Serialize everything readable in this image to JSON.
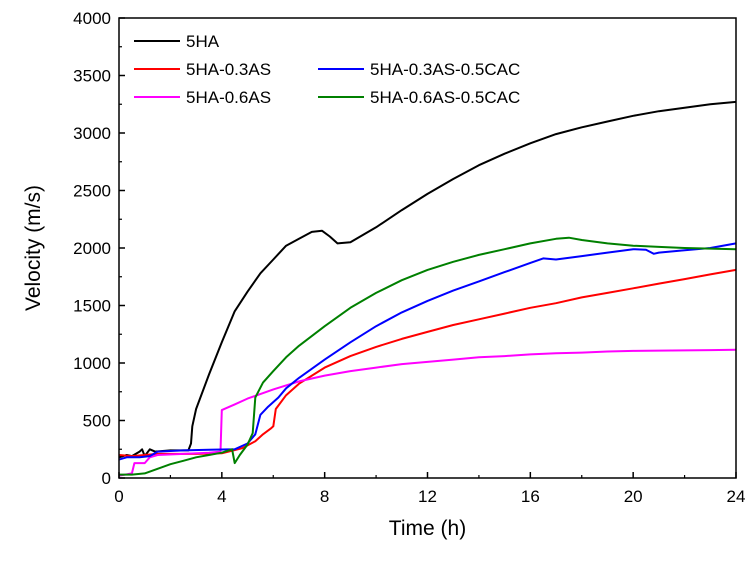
{
  "chart_data": {
    "type": "line",
    "title": "",
    "xlabel": "Time (h)",
    "ylabel": "Velocity (m/s)",
    "xlim": [
      0,
      24
    ],
    "ylim": [
      0,
      4000
    ],
    "xticks": [
      0,
      4,
      8,
      12,
      16,
      20,
      24
    ],
    "yticks": [
      0,
      500,
      1000,
      1500,
      2000,
      2500,
      3000,
      3500,
      4000
    ],
    "grid": false,
    "legend_position": "top-left",
    "series": [
      {
        "name": "5HA",
        "color": "#000000",
        "points": [
          [
            0,
            180
          ],
          [
            0.3,
            200
          ],
          [
            0.5,
            190
          ],
          [
            0.8,
            230
          ],
          [
            0.9,
            250
          ],
          [
            1.0,
            190
          ],
          [
            1.2,
            250
          ],
          [
            1.4,
            230
          ],
          [
            2.0,
            240
          ],
          [
            2.7,
            240
          ],
          [
            2.8,
            300
          ],
          [
            2.85,
            450
          ],
          [
            3.0,
            600
          ],
          [
            3.5,
            900
          ],
          [
            4.0,
            1180
          ],
          [
            4.5,
            1450
          ],
          [
            5.0,
            1620
          ],
          [
            5.5,
            1780
          ],
          [
            6.0,
            1900
          ],
          [
            6.5,
            2020
          ],
          [
            7.0,
            2080
          ],
          [
            7.5,
            2140
          ],
          [
            7.9,
            2150
          ],
          [
            8.2,
            2100
          ],
          [
            8.5,
            2040
          ],
          [
            9.0,
            2050
          ],
          [
            10,
            2180
          ],
          [
            11,
            2330
          ],
          [
            12,
            2470
          ],
          [
            13,
            2600
          ],
          [
            14,
            2720
          ],
          [
            15,
            2820
          ],
          [
            16,
            2910
          ],
          [
            17,
            2990
          ],
          [
            18,
            3050
          ],
          [
            19,
            3100
          ],
          [
            20,
            3150
          ],
          [
            21,
            3190
          ],
          [
            22,
            3220
          ],
          [
            23,
            3250
          ],
          [
            24,
            3270
          ]
        ]
      },
      {
        "name": "5HA-0.3AS",
        "color": "#ff0000",
        "points": [
          [
            0,
            200
          ],
          [
            0.5,
            190
          ],
          [
            1.0,
            200
          ],
          [
            1.5,
            210
          ],
          [
            3.0,
            210
          ],
          [
            4.0,
            215
          ],
          [
            4.8,
            260
          ],
          [
            5.3,
            320
          ],
          [
            5.6,
            380
          ],
          [
            5.9,
            430
          ],
          [
            6.0,
            450
          ],
          [
            6.1,
            600
          ],
          [
            6.5,
            720
          ],
          [
            7.0,
            820
          ],
          [
            8.0,
            960
          ],
          [
            9.0,
            1060
          ],
          [
            10,
            1140
          ],
          [
            11,
            1210
          ],
          [
            12,
            1270
          ],
          [
            13,
            1330
          ],
          [
            14,
            1380
          ],
          [
            15,
            1430
          ],
          [
            16,
            1480
          ],
          [
            17,
            1520
          ],
          [
            18,
            1570
          ],
          [
            19,
            1610
          ],
          [
            20,
            1650
          ],
          [
            21,
            1690
          ],
          [
            22,
            1730
          ],
          [
            23,
            1770
          ],
          [
            24,
            1810
          ]
        ]
      },
      {
        "name": "5HA-0.6AS",
        "color": "#ff00ff",
        "points": [
          [
            0,
            20
          ],
          [
            0.5,
            40
          ],
          [
            0.6,
            130
          ],
          [
            1.0,
            130
          ],
          [
            1.2,
            180
          ],
          [
            1.5,
            200
          ],
          [
            2.5,
            210
          ],
          [
            3.5,
            220
          ],
          [
            3.95,
            230
          ],
          [
            4.0,
            590
          ],
          [
            4.5,
            640
          ],
          [
            5.0,
            690
          ],
          [
            6.0,
            770
          ],
          [
            7.0,
            840
          ],
          [
            8.0,
            890
          ],
          [
            9.0,
            930
          ],
          [
            10,
            960
          ],
          [
            11,
            990
          ],
          [
            12,
            1010
          ],
          [
            13,
            1030
          ],
          [
            14,
            1050
          ],
          [
            15,
            1060
          ],
          [
            16,
            1075
          ],
          [
            17,
            1085
          ],
          [
            18,
            1090
          ],
          [
            19,
            1100
          ],
          [
            20,
            1105
          ],
          [
            21,
            1108
          ],
          [
            22,
            1110
          ],
          [
            23,
            1112
          ],
          [
            24,
            1115
          ]
        ]
      },
      {
        "name": "5HA-0.3AS-0.5CAC",
        "color": "#0000ff",
        "points": [
          [
            0,
            160
          ],
          [
            0.3,
            180
          ],
          [
            0.8,
            180
          ],
          [
            1.2,
            190
          ],
          [
            1.5,
            230
          ],
          [
            2.5,
            240
          ],
          [
            3.5,
            245
          ],
          [
            4.5,
            250
          ],
          [
            5.0,
            300
          ],
          [
            5.3,
            380
          ],
          [
            5.5,
            550
          ],
          [
            5.8,
            620
          ],
          [
            6.2,
            700
          ],
          [
            6.5,
            780
          ],
          [
            7.0,
            870
          ],
          [
            8.0,
            1030
          ],
          [
            9.0,
            1180
          ],
          [
            10,
            1320
          ],
          [
            11,
            1440
          ],
          [
            12,
            1540
          ],
          [
            13,
            1630
          ],
          [
            14,
            1710
          ],
          [
            15,
            1790
          ],
          [
            16,
            1870
          ],
          [
            16.5,
            1910
          ],
          [
            17,
            1900
          ],
          [
            18,
            1930
          ],
          [
            19,
            1960
          ],
          [
            20,
            1990
          ],
          [
            20.5,
            1985
          ],
          [
            20.8,
            1950
          ],
          [
            21,
            1960
          ],
          [
            22,
            1980
          ],
          [
            23,
            2000
          ],
          [
            24,
            2040
          ]
        ]
      },
      {
        "name": "5HA-0.6AS-0.5CAC",
        "color": "#008000",
        "points": [
          [
            0,
            30
          ],
          [
            0.5,
            30
          ],
          [
            1.0,
            40
          ],
          [
            1.5,
            80
          ],
          [
            2.0,
            120
          ],
          [
            2.5,
            150
          ],
          [
            3.0,
            180
          ],
          [
            3.5,
            200
          ],
          [
            4.0,
            220
          ],
          [
            4.4,
            250
          ],
          [
            4.5,
            130
          ],
          [
            4.7,
            200
          ],
          [
            5.0,
            290
          ],
          [
            5.2,
            390
          ],
          [
            5.3,
            700
          ],
          [
            5.6,
            830
          ],
          [
            6.0,
            930
          ],
          [
            6.5,
            1050
          ],
          [
            7.0,
            1150
          ],
          [
            8.0,
            1320
          ],
          [
            9.0,
            1480
          ],
          [
            10,
            1610
          ],
          [
            11,
            1720
          ],
          [
            12,
            1810
          ],
          [
            13,
            1880
          ],
          [
            14,
            1940
          ],
          [
            15,
            1990
          ],
          [
            16,
            2040
          ],
          [
            17,
            2080
          ],
          [
            17.5,
            2090
          ],
          [
            18,
            2070
          ],
          [
            19,
            2040
          ],
          [
            20,
            2020
          ],
          [
            21,
            2010
          ],
          [
            22,
            2000
          ],
          [
            23,
            1995
          ],
          [
            24,
            1990
          ]
        ]
      }
    ]
  }
}
